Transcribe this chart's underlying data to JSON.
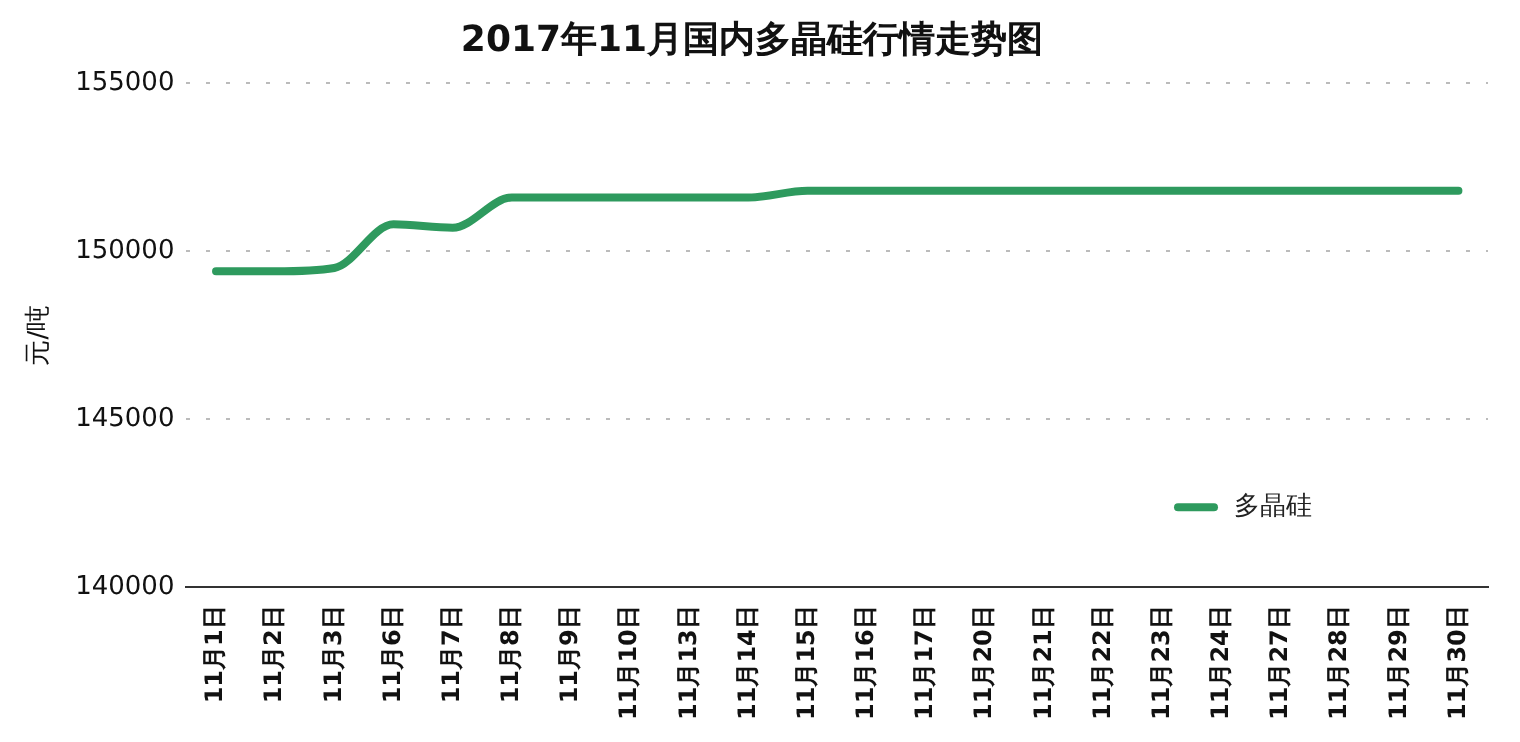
{
  "chart_data": {
    "type": "line",
    "title": "2017年11月国内多晶硅行情走势图",
    "ylabel": "元/吨",
    "categories": [
      "11月1日",
      "11月2日",
      "11月3日",
      "11月6日",
      "11月7日",
      "11月8日",
      "11月9日",
      "11月10日",
      "11月13日",
      "11月14日",
      "11月15日",
      "11月16日",
      "11月17日",
      "11月20日",
      "11月21日",
      "11月22日",
      "11月23日",
      "11月24日",
      "11月27日",
      "11月28日",
      "11月29日",
      "11月30日"
    ],
    "series": [
      {
        "name": "多晶硅",
        "color": "#2e9a5e",
        "values": [
          149400,
          149400,
          149500,
          150800,
          150700,
          151600,
          151600,
          151600,
          151600,
          151600,
          151800,
          151800,
          151800,
          151800,
          151800,
          151800,
          151800,
          151800,
          151800,
          151800,
          151800,
          151800
        ]
      }
    ],
    "ylim": [
      140000,
      155000
    ],
    "yticks": [
      140000,
      145000,
      150000,
      155000
    ],
    "grid": "y",
    "legend": "bottom right",
    "marker": "none",
    "line_style": "solid"
  }
}
